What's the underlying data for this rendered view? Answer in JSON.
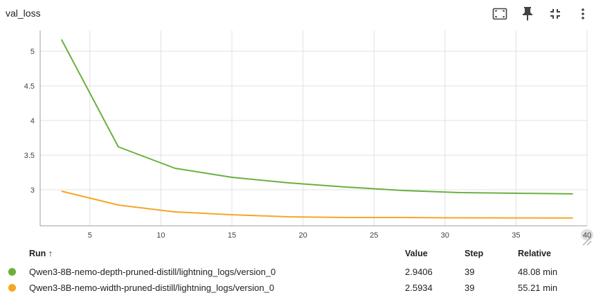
{
  "header": {
    "title": "val_loss",
    "tools": [
      "fit-domain-icon",
      "pin-icon",
      "collapse-icon",
      "more-vert-icon"
    ]
  },
  "chart_data": {
    "type": "line",
    "title": "val_loss",
    "xlabel": "",
    "ylabel": "",
    "xlim": [
      1.5,
      40
    ],
    "ylim": [
      2.48,
      5.3
    ],
    "x_ticks": [
      "5",
      "10",
      "15",
      "20",
      "25",
      "30",
      "35",
      "40"
    ],
    "y_ticks": [
      "3",
      "3.5",
      "4",
      "4.5",
      "5"
    ],
    "grid": true,
    "series": [
      {
        "name": "Qwen3-8B-nemo-depth-pruned-distill/lightning_logs/version_0",
        "color": "#6aaf3e",
        "x": [
          3,
          7,
          11,
          15,
          19,
          23,
          27,
          31,
          35,
          39
        ],
        "y": [
          5.17,
          3.62,
          3.31,
          3.18,
          3.1,
          3.04,
          2.99,
          2.96,
          2.95,
          2.9406
        ]
      },
      {
        "name": "Qwen3-8B-nemo-width-pruned-distill/lightning_logs/version_0",
        "color": "#f5a623",
        "x": [
          3,
          7,
          11,
          15,
          19,
          23,
          27,
          31,
          35,
          39
        ],
        "y": [
          2.98,
          2.78,
          2.68,
          2.64,
          2.61,
          2.6,
          2.6,
          2.595,
          2.594,
          2.5934
        ]
      }
    ]
  },
  "table": {
    "headers": {
      "run": "Run ↑",
      "value": "Value",
      "step": "Step",
      "relative": "Relative"
    },
    "rows": [
      {
        "color": "#6aaf3e",
        "run": "Qwen3-8B-nemo-depth-pruned-distill/lightning_logs/version_0",
        "value": "2.9406",
        "step": "39",
        "relative": "48.08 min"
      },
      {
        "color": "#f5a623",
        "run": "Qwen3-8B-nemo-width-pruned-distill/lightning_logs/version_0",
        "value": "2.5934",
        "step": "39",
        "relative": "55.21 min"
      }
    ]
  }
}
